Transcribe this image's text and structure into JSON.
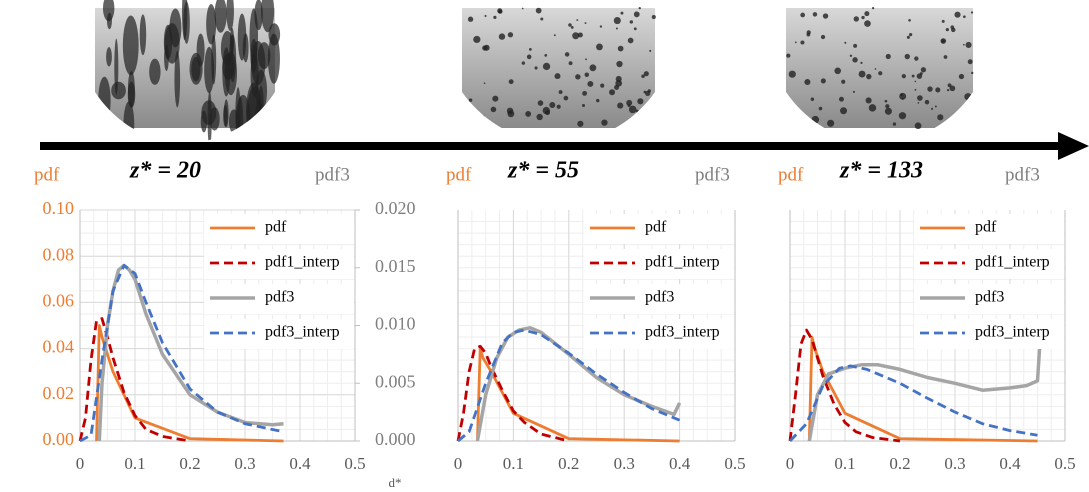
{
  "chart_data": [
    {
      "type": "line",
      "title": "z* = 20",
      "ylabel": "pdf",
      "y2label": "pdf3",
      "xlabel": "d*",
      "xlim": [
        0,
        0.5
      ],
      "xticks": [
        0,
        0.1,
        0.2,
        0.3,
        0.4,
        0.5
      ],
      "ylim": [
        0,
        0.1
      ],
      "yticks": [
        {
          "value": 0,
          "label": "0.00"
        },
        {
          "value": 0.02,
          "label": "0.02"
        },
        {
          "value": 0.04,
          "label": "0.04"
        },
        {
          "value": 0.06,
          "label": "0.06"
        },
        {
          "value": 0.08,
          "label": "0.08"
        },
        {
          "value": 0.1,
          "label": "0.10"
        }
      ],
      "y2lim": [
        0,
        0.02
      ],
      "y2ticks": [
        {
          "value": 0,
          "label": "0.000"
        },
        {
          "value": 0.005,
          "label": "0.005"
        },
        {
          "value": 0.01,
          "label": "0.010"
        },
        {
          "value": 0.015,
          "label": "0.015"
        },
        {
          "value": 0.02,
          "label": "0.020"
        }
      ],
      "grid": true,
      "legend": "upper right",
      "series": [
        {
          "name": "pdf",
          "color": "#ed7d31",
          "x": [
            0.03,
            0.035,
            0.04,
            0.06,
            0.1,
            0.2,
            0.37
          ],
          "values": [
            0,
            0.05,
            0.045,
            0.03,
            0.01,
            0.001,
            0
          ]
        },
        {
          "name": "pdf1_interp",
          "color": "#c00000",
          "dashed": true,
          "x": [
            0,
            0.01,
            0.02,
            0.03,
            0.04,
            0.05,
            0.06,
            0.08,
            0.1,
            0.12,
            0.15,
            0.2
          ],
          "values": [
            0,
            0.01,
            0.035,
            0.052,
            0.053,
            0.045,
            0.036,
            0.021,
            0.011,
            0.005,
            0.002,
            0
          ]
        },
        {
          "name": "pdf3",
          "color": "#a5a5a5",
          "axis": "y2",
          "x": [
            0.035,
            0.04,
            0.05,
            0.06,
            0.07,
            0.08,
            0.09,
            0.1,
            0.12,
            0.15,
            0.2,
            0.25,
            0.3,
            0.35,
            0.37
          ],
          "values": [
            0,
            0.005,
            0.01,
            0.013,
            0.0148,
            0.0152,
            0.0148,
            0.014,
            0.011,
            0.0075,
            0.004,
            0.0025,
            0.0016,
            0.0014,
            0.0015
          ]
        },
        {
          "name": "pdf3_interp",
          "color": "#4472c4",
          "dashed": true,
          "axis": "y2",
          "x": [
            0,
            0.02,
            0.04,
            0.06,
            0.08,
            0.1,
            0.12,
            0.15,
            0.2,
            0.25,
            0.3,
            0.37
          ],
          "values": [
            0,
            0.0005,
            0.007,
            0.013,
            0.0152,
            0.0145,
            0.012,
            0.0085,
            0.0045,
            0.0025,
            0.0015,
            0.0008
          ]
        }
      ]
    },
    {
      "type": "line",
      "title": "z* = 55",
      "ylabel": "pdf",
      "y2label": "pdf3",
      "xlim": [
        0,
        0.5
      ],
      "xticks": [
        0,
        0.1,
        0.2,
        0.3,
        0.4,
        0.5
      ],
      "ylim": [
        0,
        0.1
      ],
      "y2lim": [
        0,
        0.02
      ],
      "grid": true,
      "legend": "upper right",
      "series": [
        {
          "name": "pdf",
          "color": "#ed7d31",
          "x": [
            0.035,
            0.04,
            0.045,
            0.06,
            0.1,
            0.2,
            0.4
          ],
          "values": [
            0,
            0.04,
            0.036,
            0.03,
            0.012,
            0.001,
            0
          ]
        },
        {
          "name": "pdf1_interp",
          "color": "#c00000",
          "dashed": true,
          "x": [
            0,
            0.01,
            0.02,
            0.03,
            0.04,
            0.05,
            0.06,
            0.08,
            0.1,
            0.12,
            0.15,
            0.2
          ],
          "values": [
            0,
            0.012,
            0.03,
            0.04,
            0.041,
            0.038,
            0.032,
            0.022,
            0.013,
            0.008,
            0.003,
            0
          ]
        },
        {
          "name": "pdf3",
          "color": "#a5a5a5",
          "axis": "y2",
          "x": [
            0.035,
            0.05,
            0.07,
            0.09,
            0.11,
            0.13,
            0.15,
            0.2,
            0.25,
            0.3,
            0.35,
            0.39,
            0.4
          ],
          "values": [
            0,
            0.004,
            0.0072,
            0.009,
            0.0096,
            0.0098,
            0.0094,
            0.0075,
            0.0055,
            0.004,
            0.003,
            0.0023,
            0.0033
          ]
        },
        {
          "name": "pdf3_interp",
          "color": "#4472c4",
          "dashed": true,
          "axis": "y2",
          "x": [
            0,
            0.02,
            0.05,
            0.08,
            0.1,
            0.12,
            0.15,
            0.2,
            0.25,
            0.3,
            0.35,
            0.4
          ],
          "values": [
            0,
            0.0008,
            0.005,
            0.0085,
            0.0094,
            0.0096,
            0.0092,
            0.0076,
            0.0058,
            0.0042,
            0.0028,
            0.0018
          ]
        }
      ]
    },
    {
      "type": "line",
      "title": "z* = 133",
      "ylabel": "pdf",
      "y2label": "pdf3",
      "xlim": [
        0,
        0.5
      ],
      "xticks": [
        0,
        0.1,
        0.2,
        0.3,
        0.4,
        0.5
      ],
      "ylim": [
        0,
        0.1
      ],
      "y2lim": [
        0,
        0.02
      ],
      "grid": true,
      "legend": "upper right",
      "series": [
        {
          "name": "pdf",
          "color": "#ed7d31",
          "x": [
            0.035,
            0.04,
            0.045,
            0.06,
            0.1,
            0.2,
            0.45
          ],
          "values": [
            0,
            0.045,
            0.04,
            0.03,
            0.012,
            0.001,
            0
          ]
        },
        {
          "name": "pdf1_interp",
          "color": "#c00000",
          "dashed": true,
          "x": [
            0,
            0.01,
            0.02,
            0.03,
            0.04,
            0.05,
            0.06,
            0.08,
            0.1,
            0.12,
            0.15,
            0.2
          ],
          "values": [
            0,
            0.02,
            0.042,
            0.048,
            0.044,
            0.036,
            0.028,
            0.016,
            0.008,
            0.004,
            0.0015,
            0
          ]
        },
        {
          "name": "pdf3",
          "color": "#a5a5a5",
          "axis": "y2",
          "x": [
            0.035,
            0.05,
            0.07,
            0.1,
            0.13,
            0.16,
            0.2,
            0.25,
            0.3,
            0.35,
            0.4,
            0.43,
            0.45,
            0.455
          ],
          "values": [
            0,
            0.004,
            0.0058,
            0.0063,
            0.0066,
            0.0066,
            0.0062,
            0.0055,
            0.005,
            0.0044,
            0.0046,
            0.0048,
            0.0052,
            0.009
          ]
        },
        {
          "name": "pdf3_interp",
          "color": "#4472c4",
          "dashed": true,
          "axis": "y2",
          "x": [
            0,
            0.03,
            0.06,
            0.09,
            0.11,
            0.14,
            0.2,
            0.25,
            0.3,
            0.35,
            0.4,
            0.45
          ],
          "values": [
            0,
            0.0015,
            0.0048,
            0.0063,
            0.0065,
            0.0062,
            0.005,
            0.0037,
            0.0025,
            0.0015,
            0.0009,
            0.0005
          ]
        }
      ]
    }
  ]
}
